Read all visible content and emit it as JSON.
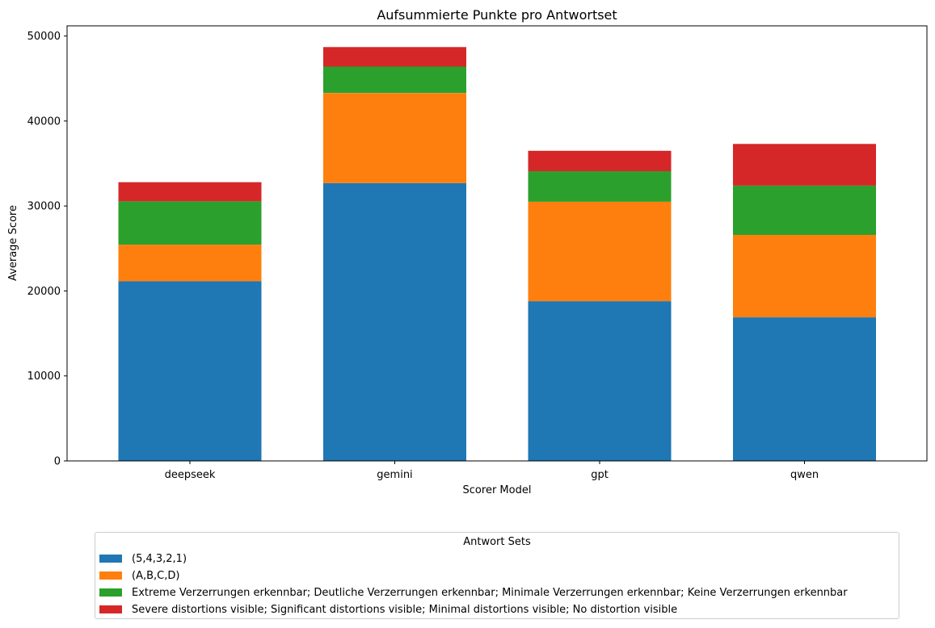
{
  "chart_data": {
    "type": "bar",
    "stacked": true,
    "title": "Aufsummierte Punkte pro Antwortset",
    "xlabel": "Scorer Model",
    "ylabel": "Average Score",
    "categories": [
      "deepseek",
      "gemini",
      "gpt",
      "qwen"
    ],
    "ylim": [
      0,
      51200
    ],
    "yticks": [
      0,
      10000,
      20000,
      30000,
      40000,
      50000
    ],
    "ytick_labels": [
      "0",
      "10000",
      "20000",
      "30000",
      "40000",
      "50000"
    ],
    "grid": false,
    "legend": {
      "title": "Antwort Sets",
      "placement": "below plot, centered"
    },
    "series": [
      {
        "name": "(5,4,3,2,1)",
        "color": "#1f77b4",
        "values": [
          21150,
          32700,
          18800,
          16900
        ]
      },
      {
        "name": "(A,B,C,D)",
        "color": "#ff7f0e",
        "values": [
          4300,
          10600,
          11700,
          9700
        ]
      },
      {
        "name": "Extreme Verzerrungen erkennbar; Deutliche Verzerrungen erkennbar; Minimale Verzerrungen erkennbar; Keine Verzerrungen erkennbar",
        "color": "#2ca02c",
        "values": [
          5100,
          3100,
          3600,
          5800
        ]
      },
      {
        "name": "Severe distortions visible; Significant distortions visible; Minimal distortions visible; No distortion visible",
        "color": "#d62728",
        "values": [
          2250,
          2300,
          2400,
          4900
        ]
      }
    ]
  }
}
